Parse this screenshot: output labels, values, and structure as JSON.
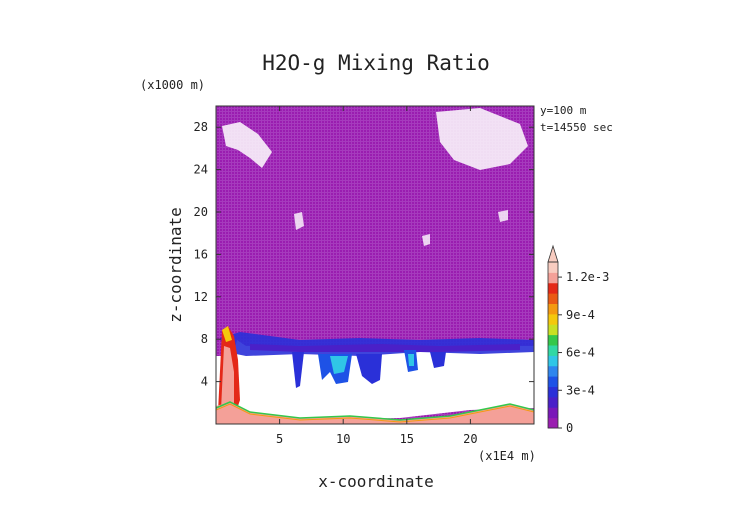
{
  "chart_data": {
    "type": "heatmap",
    "title": "H2O-g Mixing Ratio",
    "xlabel": "x-coordinate",
    "ylabel": "z-coordinate",
    "x_unit": "(x1E4 m)",
    "y_unit": "(x1000 m)",
    "annotations": [
      "y=100 m",
      "t=14550 sec"
    ],
    "xlim": [
      0,
      25
    ],
    "ylim": [
      0,
      30
    ],
    "x_ticks": [
      5,
      10,
      15,
      20
    ],
    "y_ticks": [
      4,
      8,
      12,
      16,
      20,
      24,
      28
    ],
    "colorbar": {
      "range": [
        0,
        0.00132
      ],
      "tick_values": [
        0,
        0.0003,
        0.0006,
        0.0009,
        0.0012
      ],
      "tick_labels": [
        "0",
        "3e-4",
        "6e-4",
        "9e-4",
        "1.2e-3"
      ],
      "colors": [
        "#9a1db0",
        "#7a18b8",
        "#4a20c8",
        "#2a30d8",
        "#1e52e6",
        "#2f86ee",
        "#30c6e6",
        "#30d8a4",
        "#34c84a",
        "#c8e024",
        "#f4c80c",
        "#f49a10",
        "#ea5a14",
        "#e42818",
        "#f4a098",
        "#f8ccc0"
      ]
    },
    "regions": {
      "background_value": 0,
      "dry_clear_layer_z": [
        0.5,
        7
      ],
      "moist_band_z": [
        7,
        9
      ],
      "upper_sparse_patches_z": [
        24,
        30
      ],
      "surface_layer_z": [
        0,
        1.5
      ]
    }
  }
}
